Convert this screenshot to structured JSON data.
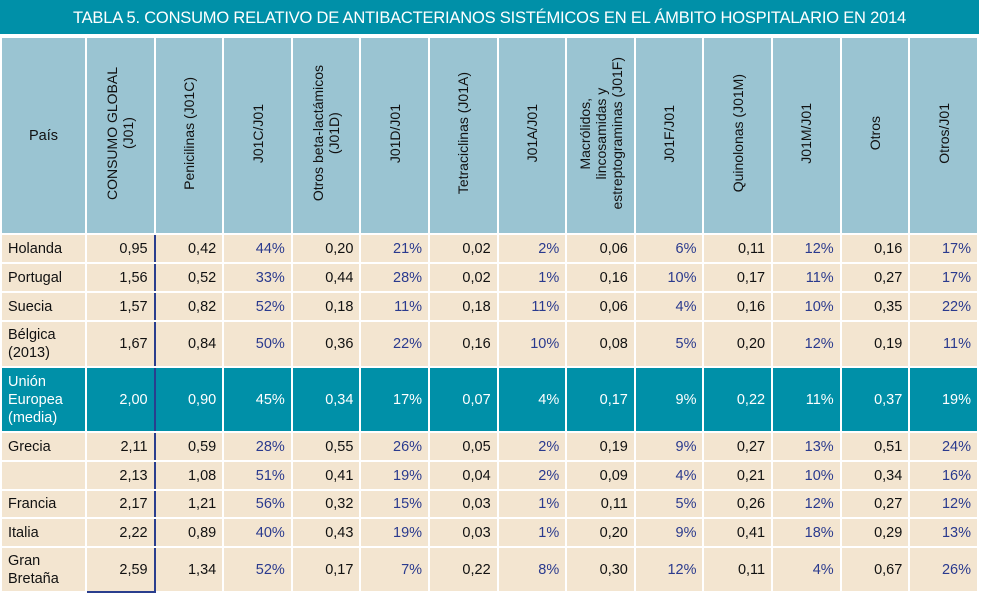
{
  "title": "TABLA 5. CONSUMO RELATIVO DE ANTIBACTERIANOS SISTÉMICOS EN EL ÁMBITO HOSPITALARIO EN 2014",
  "colors": {
    "title_bg": "#0090a8",
    "header_bg": "#9ac4d2",
    "row_bg": "#f3e5d0",
    "highlight_row_bg": "#0090a8",
    "percent_text": "#2a3a8e",
    "global_column_border": "#2a3e8e"
  },
  "headers": [
    "País",
    "CONSUMO GLOBAL\n(J01)",
    "Penicilinas (J01C)",
    "J01C/J01",
    "Otros beta-lactámicos\n(J01D)",
    "J01D/J01",
    "Tetraciclinas (J01A)",
    "J01A/J01",
    "Macrólidos,\nlincosamidas y\nestreptograminas (J01F)",
    "J01F/J01",
    "Quinolonas (J01M)",
    "J01M/J01",
    "Otros",
    "Otros/J01"
  ],
  "rows": [
    {
      "country": "Holanda",
      "values": [
        "0,95",
        "0,42",
        "44%",
        "0,20",
        "21%",
        "0,02",
        "2%",
        "0,06",
        "6%",
        "0,11",
        "12%",
        "0,16",
        "17%"
      ]
    },
    {
      "country": "Portugal",
      "values": [
        "1,56",
        "0,52",
        "33%",
        "0,44",
        "28%",
        "0,02",
        "1%",
        "0,16",
        "10%",
        "0,17",
        "11%",
        "0,27",
        "17%"
      ]
    },
    {
      "country": "Suecia",
      "values": [
        "1,57",
        "0,82",
        "52%",
        "0,18",
        "11%",
        "0,18",
        "11%",
        "0,06",
        "4%",
        "0,16",
        "10%",
        "0,35",
        "22%"
      ]
    },
    {
      "country": "Bélgica\n(2013)",
      "values": [
        "1,67",
        "0,84",
        "50%",
        "0,36",
        "22%",
        "0,16",
        "10%",
        "0,08",
        "5%",
        "0,20",
        "12%",
        "0,19",
        "11%"
      ]
    },
    {
      "country": "Unión\nEuropea\n(media)",
      "highlight": true,
      "values": [
        "2,00",
        "0,90",
        "45%",
        "0,34",
        "17%",
        "0,07",
        "4%",
        "0,17",
        "9%",
        "0,22",
        "11%",
        "0,37",
        "19%"
      ]
    },
    {
      "country": "Grecia",
      "values": [
        "2,11",
        "0,59",
        "28%",
        "0,55",
        "26%",
        "0,05",
        "2%",
        "0,19",
        "9%",
        "0,27",
        "13%",
        "0,51",
        "24%"
      ]
    },
    {
      "country": "",
      "values": [
        "2,13",
        "1,08",
        "51%",
        "0,41",
        "19%",
        "0,04",
        "2%",
        "0,09",
        "4%",
        "0,21",
        "10%",
        "0,34",
        "16%"
      ]
    },
    {
      "country": "Francia",
      "values": [
        "2,17",
        "1,21",
        "56%",
        "0,32",
        "15%",
        "0,03",
        "1%",
        "0,11",
        "5%",
        "0,26",
        "12%",
        "0,27",
        "12%"
      ]
    },
    {
      "country": "Italia",
      "values": [
        "2,22",
        "0,89",
        "40%",
        "0,43",
        "19%",
        "0,03",
        "1%",
        "0,20",
        "9%",
        "0,41",
        "18%",
        "0,29",
        "13%"
      ]
    },
    {
      "country": "Gran\nBretaña",
      "values": [
        "2,59",
        "1,34",
        "52%",
        "0,17",
        "7%",
        "0,22",
        "8%",
        "0,30",
        "12%",
        "0,11",
        "4%",
        "0,67",
        "26%"
      ]
    }
  ]
}
